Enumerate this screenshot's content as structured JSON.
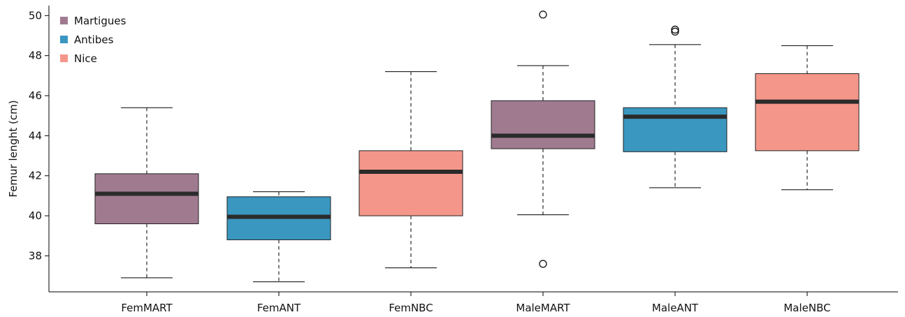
{
  "chart_data": {
    "type": "box",
    "title": "",
    "xlabel": "",
    "ylabel": "Femur lenght (cm)",
    "ylim": [
      36.2,
      50.5
    ],
    "y_ticks": [
      38,
      40,
      42,
      44,
      46,
      48,
      50
    ],
    "categories": [
      "FemMART",
      "FemANT",
      "FemNBC",
      "MaleMART",
      "MaleANT",
      "MaleNBC"
    ],
    "legend": {
      "position": "top-left",
      "entries": [
        {
          "label": "Martigues",
          "color": "#a07b90"
        },
        {
          "label": "Antibes",
          "color": "#3a97c0"
        },
        {
          "label": "Nice",
          "color": "#f4978a"
        }
      ]
    },
    "boxes": [
      {
        "category": "FemMART",
        "group": "Martigues",
        "whisker_low": 36.9,
        "q1": 39.6,
        "median": 41.1,
        "q3": 42.1,
        "whisker_high": 45.4,
        "outliers": []
      },
      {
        "category": "FemANT",
        "group": "Antibes",
        "whisker_low": 36.7,
        "q1": 38.8,
        "median": 39.95,
        "q3": 40.95,
        "whisker_high": 41.2,
        "outliers": []
      },
      {
        "category": "FemNBC",
        "group": "Nice",
        "whisker_low": 37.4,
        "q1": 40.0,
        "median": 42.2,
        "q3": 43.25,
        "whisker_high": 47.2,
        "outliers": []
      },
      {
        "category": "MaleMART",
        "group": "Martigues",
        "whisker_low": 40.05,
        "q1": 43.35,
        "median": 44.0,
        "q3": 45.75,
        "whisker_high": 47.5,
        "outliers": [
          37.6,
          50.05
        ]
      },
      {
        "category": "MaleANT",
        "group": "Antibes",
        "whisker_low": 41.4,
        "q1": 43.2,
        "median": 44.95,
        "q3": 45.4,
        "whisker_high": 48.55,
        "outliers": [
          49.2,
          49.3
        ]
      },
      {
        "category": "MaleNBC",
        "group": "Nice",
        "whisker_low": 41.3,
        "q1": 43.25,
        "median": 45.7,
        "q3": 47.1,
        "whisker_high": 48.5,
        "outliers": []
      }
    ]
  }
}
